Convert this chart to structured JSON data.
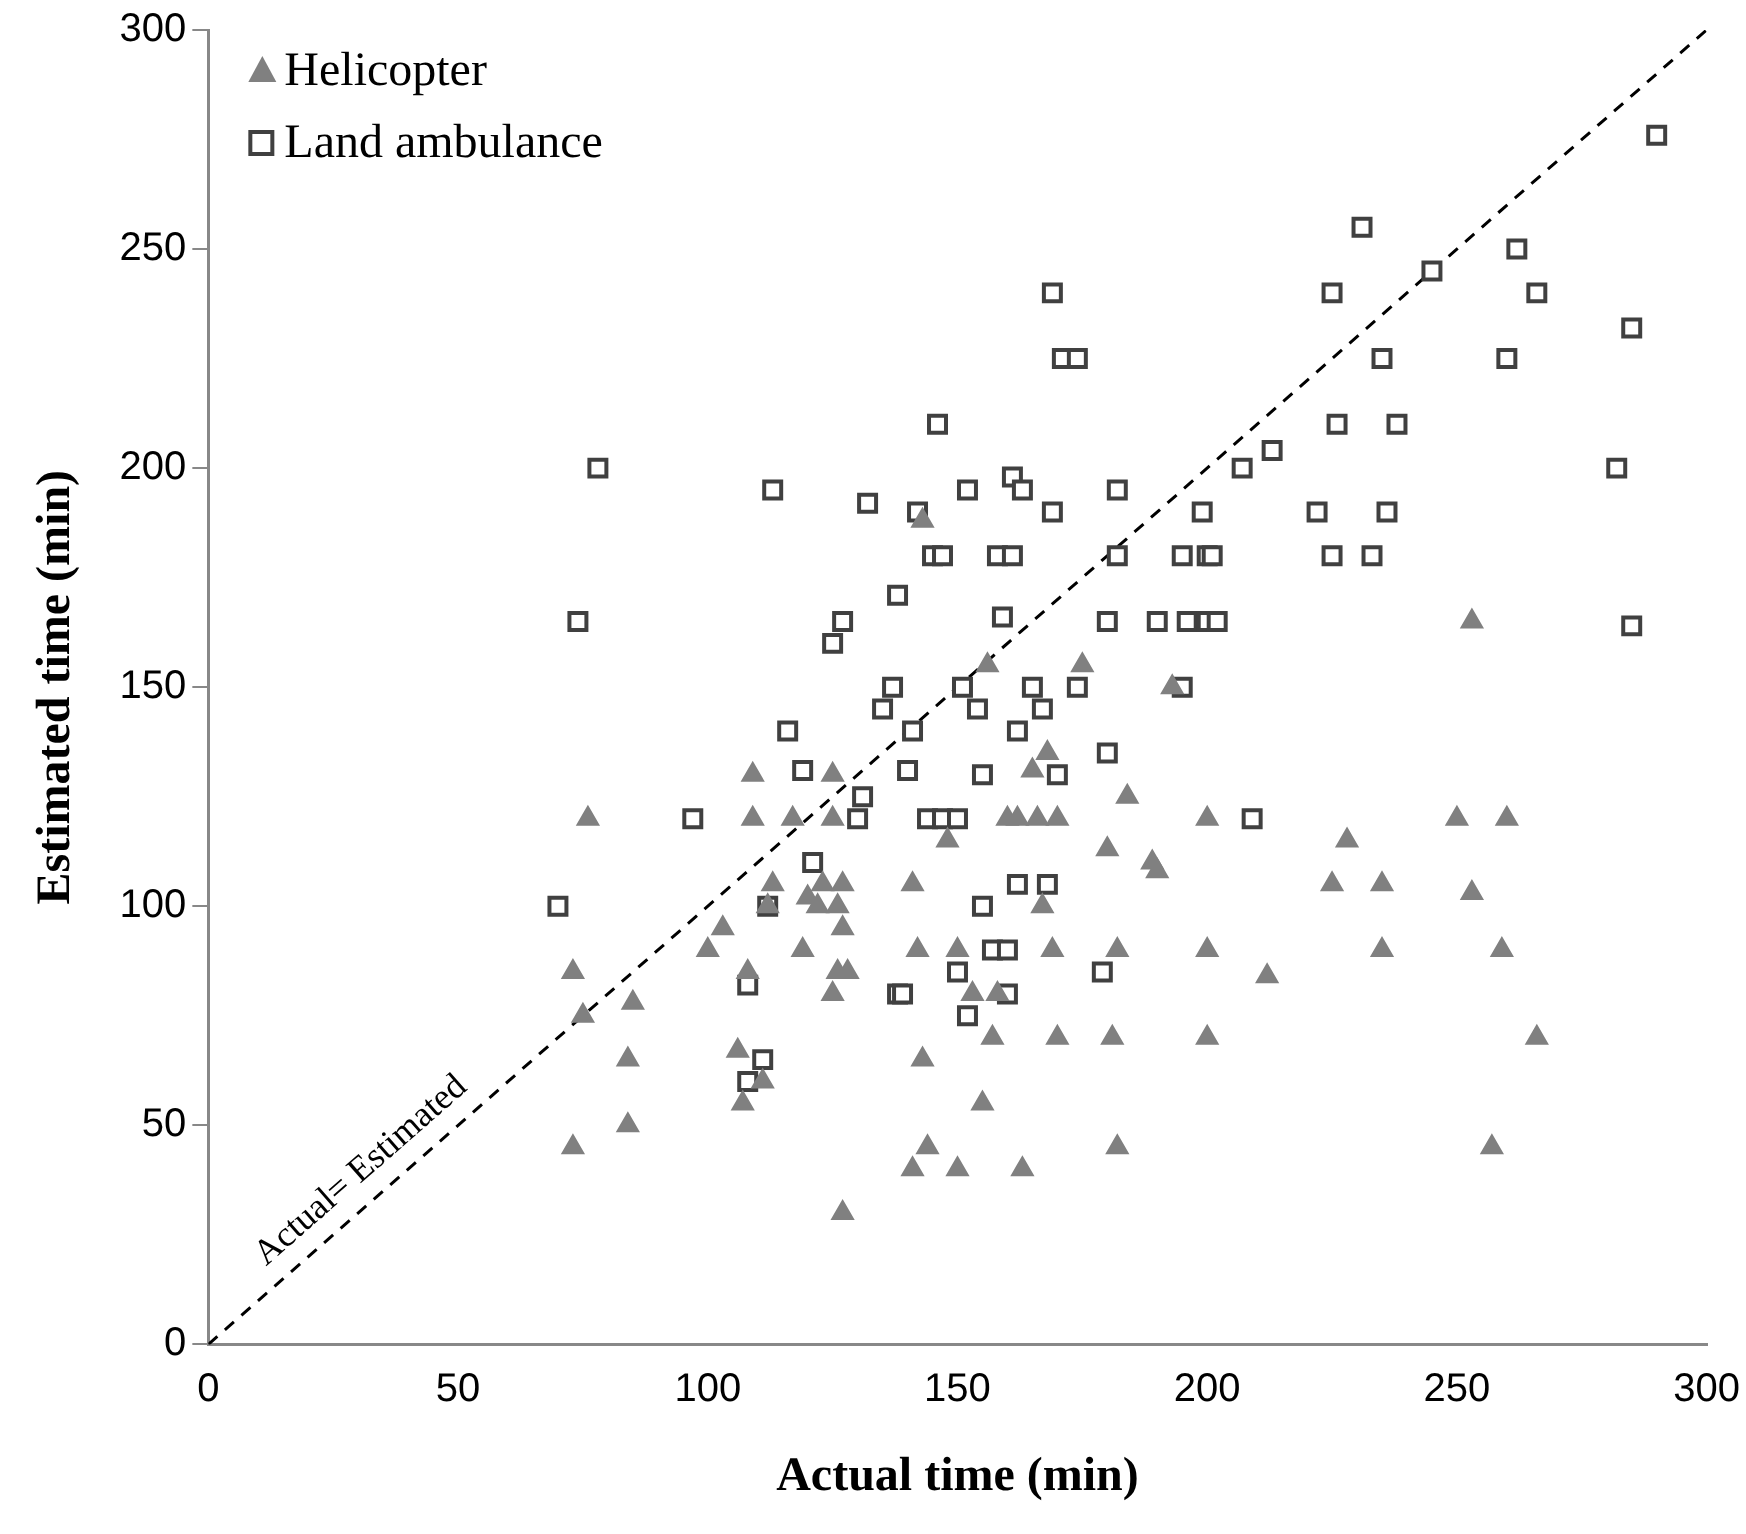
{
  "chart_data": {
    "type": "scatter",
    "xlabel": "Actual time (min)",
    "ylabel": "Estimated time (min)",
    "xlim": [
      0,
      300
    ],
    "xticks": [
      0,
      50,
      100,
      150,
      200,
      250,
      300
    ],
    "ylim": [
      0,
      300
    ],
    "yticks": [
      0,
      50,
      100,
      150,
      200,
      250,
      300
    ],
    "legend": "top left",
    "grid": false,
    "annotations": [
      "Actual= Estimated"
    ],
    "series": [
      {
        "name": "Helicopter",
        "color": "#808080",
        "marker": "triangle",
        "x": [
          73,
          76,
          75,
          73,
          85,
          84,
          84,
          100,
          103,
          106,
          107,
          108,
          109,
          109,
          111,
          112,
          113,
          117,
          119,
          120,
          122,
          123,
          125,
          125,
          126,
          125,
          126,
          127,
          127,
          127,
          128,
          141,
          141,
          142,
          143,
          143,
          144,
          148,
          150,
          150,
          153,
          155,
          156,
          157,
          158,
          160,
          162,
          163,
          165,
          166,
          167,
          168,
          169,
          170,
          170,
          175,
          180,
          181,
          182,
          182,
          184,
          189,
          190,
          193,
          200,
          200,
          200,
          212,
          225,
          228,
          235,
          235,
          250,
          253,
          253,
          257,
          259,
          260,
          266
        ],
        "values": [
          85,
          120,
          75,
          45,
          78,
          65,
          50,
          90,
          95,
          67,
          55,
          85,
          120,
          130,
          60,
          100,
          105,
          120,
          90,
          102,
          100,
          105,
          130,
          120,
          85,
          80,
          100,
          95,
          105,
          30,
          85,
          105,
          40,
          90,
          65,
          188,
          45,
          115,
          90,
          40,
          80,
          55,
          155,
          70,
          80,
          120,
          120,
          40,
          131,
          120,
          100,
          135,
          90,
          120,
          70,
          155,
          113,
          70,
          90,
          45,
          125,
          110,
          108,
          150,
          90,
          120,
          70,
          84,
          105,
          115,
          105,
          90,
          120,
          165,
          103,
          45,
          90,
          120,
          70
        ]
      },
      {
        "name": "Land ambulance",
        "color": "#404040",
        "marker": "square",
        "x": [
          70,
          74,
          78,
          97,
          108,
          108,
          111,
          112,
          113,
          116,
          119,
          121,
          125,
          127,
          130,
          131,
          132,
          135,
          137,
          138,
          138,
          139,
          140,
          141,
          142,
          144,
          145,
          146,
          147,
          147,
          150,
          150,
          151,
          152,
          152,
          154,
          155,
          155,
          157,
          158,
          159,
          160,
          160,
          161,
          161,
          162,
          162,
          163,
          165,
          167,
          168,
          169,
          169,
          170,
          171,
          174,
          174,
          179,
          180,
          180,
          182,
          182,
          190,
          195,
          195,
          196,
          199,
          200,
          200,
          202,
          201,
          207,
          209,
          213,
          222,
          225,
          225,
          226,
          231,
          233,
          235,
          236,
          238,
          245,
          260,
          262,
          266,
          282,
          285,
          285,
          290
        ],
        "values": [
          100,
          165,
          200,
          120,
          60,
          82,
          65,
          100,
          195,
          140,
          131,
          110,
          160,
          165,
          120,
          125,
          192,
          145,
          150,
          171,
          80,
          80,
          131,
          140,
          190,
          120,
          180,
          210,
          180,
          120,
          120,
          85,
          150,
          75,
          195,
          145,
          100,
          130,
          90,
          180,
          166,
          90,
          80,
          198,
          180,
          140,
          105,
          195,
          150,
          145,
          105,
          240,
          190,
          130,
          225,
          225,
          150,
          85,
          165,
          135,
          180,
          195,
          165,
          180,
          150,
          165,
          190,
          180,
          165,
          165,
          180,
          200,
          120,
          204,
          190,
          180,
          240,
          210,
          255,
          180,
          225,
          190,
          210,
          245,
          225,
          250,
          240,
          200,
          232,
          164,
          276
        ]
      },
      {
        "type": "line",
        "color": "#000000",
        "line_style": "dashed",
        "marker": "none",
        "x": [
          0,
          300
        ],
        "values": [
          0,
          300
        ]
      }
    ]
  }
}
